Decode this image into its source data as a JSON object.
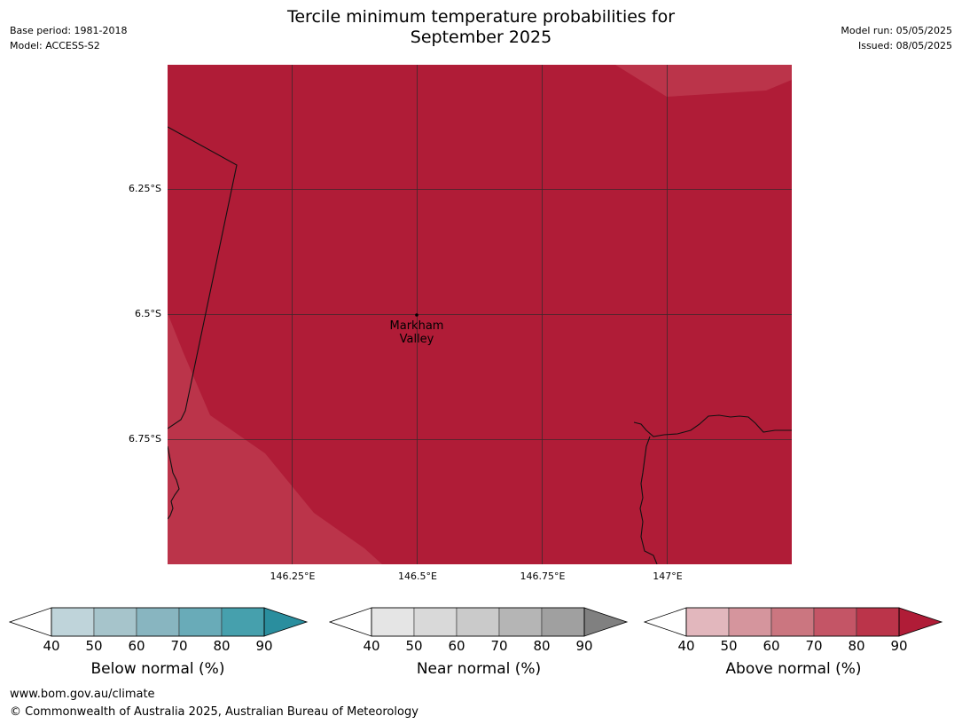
{
  "title_line1": "Tercile minimum temperature probabilities for",
  "title_line2": "September 2025",
  "meta_left": {
    "base_period": "Base period: 1981-2018",
    "model": "Model: ACCESS-S2"
  },
  "meta_right": {
    "model_run": "Model run: 05/05/2025",
    "issued": "Issued: 08/05/2025"
  },
  "map": {
    "lat_ticks": [
      "6.25°S",
      "6.5°S",
      "6.75°S"
    ],
    "lon_ticks": [
      "146.25°E",
      "146.5°E",
      "146.75°E",
      "147°E"
    ],
    "place_name_line1": "Markham",
    "place_name_line2": "Valley",
    "colors": {
      "dominant": "#b01c37",
      "lighter": "#bb344a",
      "grid": "#333333"
    }
  },
  "colorbars": [
    {
      "label": "Below normal (%)",
      "ticks": [
        "40",
        "50",
        "60",
        "70",
        "80",
        "90"
      ],
      "colors": [
        "#bfd4da",
        "#a6c4cb",
        "#88b5c0",
        "#69abb8",
        "#46a0ad",
        "#2a8e9e"
      ]
    },
    {
      "label": "Near normal (%)",
      "ticks": [
        "40",
        "50",
        "60",
        "70",
        "80",
        "90"
      ],
      "colors": [
        "#e5e5e5",
        "#d9d9d9",
        "#cacaca",
        "#b5b5b5",
        "#a0a0a0",
        "#808080"
      ]
    },
    {
      "label": "Above normal (%)",
      "ticks": [
        "40",
        "50",
        "60",
        "70",
        "80",
        "90"
      ],
      "colors": [
        "#e2b7bd",
        "#d5959d",
        "#cb7680",
        "#c45566",
        "#bb344a",
        "#b01c37"
      ]
    }
  ],
  "footer": {
    "url": "www.bom.gov.au/climate",
    "copyright": "© Commonwealth of Australia 2025, Australian Bureau of Meteorology"
  }
}
